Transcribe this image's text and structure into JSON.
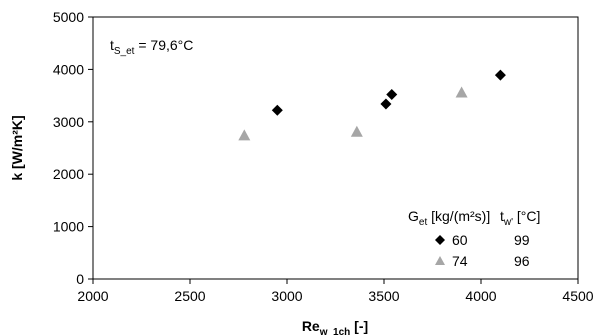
{
  "chart_data": {
    "type": "scatter",
    "xlabel": {
      "main": "Re",
      "sub": "w_1ch",
      "unit": " [-]"
    },
    "ylabel": "k  [W/m²K]",
    "xlim": [
      2000,
      4500
    ],
    "ylim": [
      0,
      5000
    ],
    "xticks": [
      "2000",
      "2500",
      "3000",
      "3500",
      "4000",
      "4500"
    ],
    "yticks": [
      "0",
      "1000",
      "2000",
      "3000",
      "4000",
      "5000"
    ],
    "grid": false,
    "annotation": {
      "main": "t",
      "sub": "S_et",
      "rest": " = 79,6°C"
    },
    "legend": {
      "placement": "bottom-right",
      "header_g": {
        "main": "G",
        "sub": "et",
        "rest": " [kg/(m²s)]"
      },
      "header_t": {
        "main": "t",
        "sub": "w'",
        "rest": " [°C]"
      }
    },
    "series": [
      {
        "g_label": "60",
        "t_label": "99",
        "marker": "diamond",
        "color": "#000000",
        "points": [
          [
            2950,
            3220
          ],
          [
            3510,
            3340
          ],
          [
            3540,
            3520
          ],
          [
            4100,
            3890
          ]
        ]
      },
      {
        "g_label": "74",
        "t_label": "96",
        "marker": "triangle",
        "color": "#a6a6a6",
        "points": [
          [
            2780,
            2740
          ],
          [
            3360,
            2810
          ],
          [
            3900,
            3560
          ]
        ]
      }
    ]
  }
}
